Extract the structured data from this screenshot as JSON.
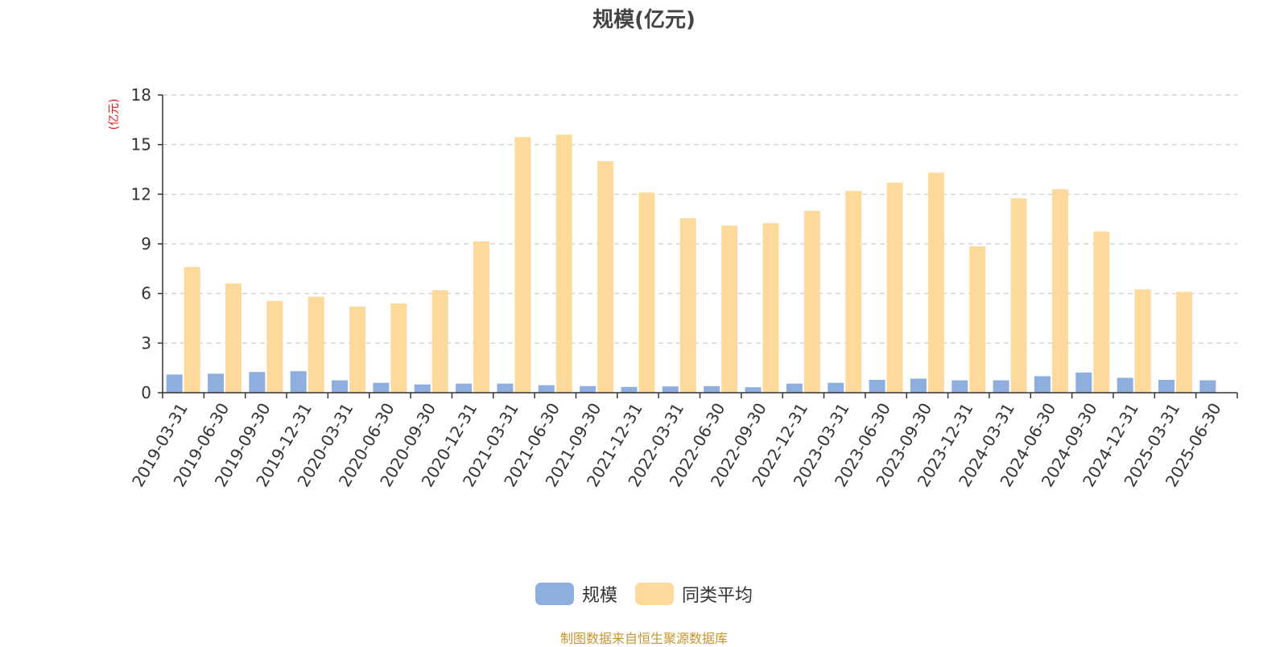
{
  "chart_data": {
    "type": "bar",
    "title": "规模(亿元)",
    "ylabel": "(亿元)",
    "xlabel": "",
    "ylim": [
      0,
      18
    ],
    "yticks": [
      0,
      3,
      6,
      9,
      12,
      15,
      18
    ],
    "grid": true,
    "legend_position": "bottom",
    "categories": [
      "2019-03-31",
      "2019-06-30",
      "2019-09-30",
      "2019-12-31",
      "2020-03-31",
      "2020-06-30",
      "2020-09-30",
      "2020-12-31",
      "2021-03-31",
      "2021-06-30",
      "2021-09-30",
      "2021-12-31",
      "2022-03-31",
      "2022-06-30",
      "2022-09-30",
      "2022-12-31",
      "2023-03-31",
      "2023-06-30",
      "2023-09-30",
      "2023-12-31",
      "2024-03-31",
      "2024-06-30",
      "2024-09-30",
      "2024-12-31",
      "2025-03-31",
      "2025-06-30"
    ],
    "series": [
      {
        "name": "规模",
        "color": "#8eaedd",
        "values": [
          1.1,
          1.15,
          1.25,
          1.3,
          0.75,
          0.6,
          0.5,
          0.55,
          0.55,
          0.45,
          0.4,
          0.35,
          0.38,
          0.4,
          0.33,
          0.55,
          0.6,
          0.78,
          0.85,
          0.75,
          0.75,
          1.0,
          1.22,
          0.9,
          0.78,
          0.75
        ]
      },
      {
        "name": "同类平均",
        "color": "#fdd99b",
        "values": [
          7.6,
          6.6,
          5.55,
          5.8,
          5.2,
          5.4,
          6.2,
          9.15,
          15.45,
          15.6,
          14.0,
          12.1,
          10.55,
          10.1,
          10.25,
          11.0,
          12.2,
          12.7,
          13.3,
          8.85,
          11.75,
          12.3,
          9.75,
          6.25,
          6.1,
          null
        ]
      }
    ]
  },
  "source_note": "制图数据来自恒生聚源数据库",
  "colors": {
    "axis": "#333333",
    "grid": "#cccccc",
    "unit_label": "#e8141c",
    "source_note": "#c9952d",
    "title": "#444444"
  }
}
